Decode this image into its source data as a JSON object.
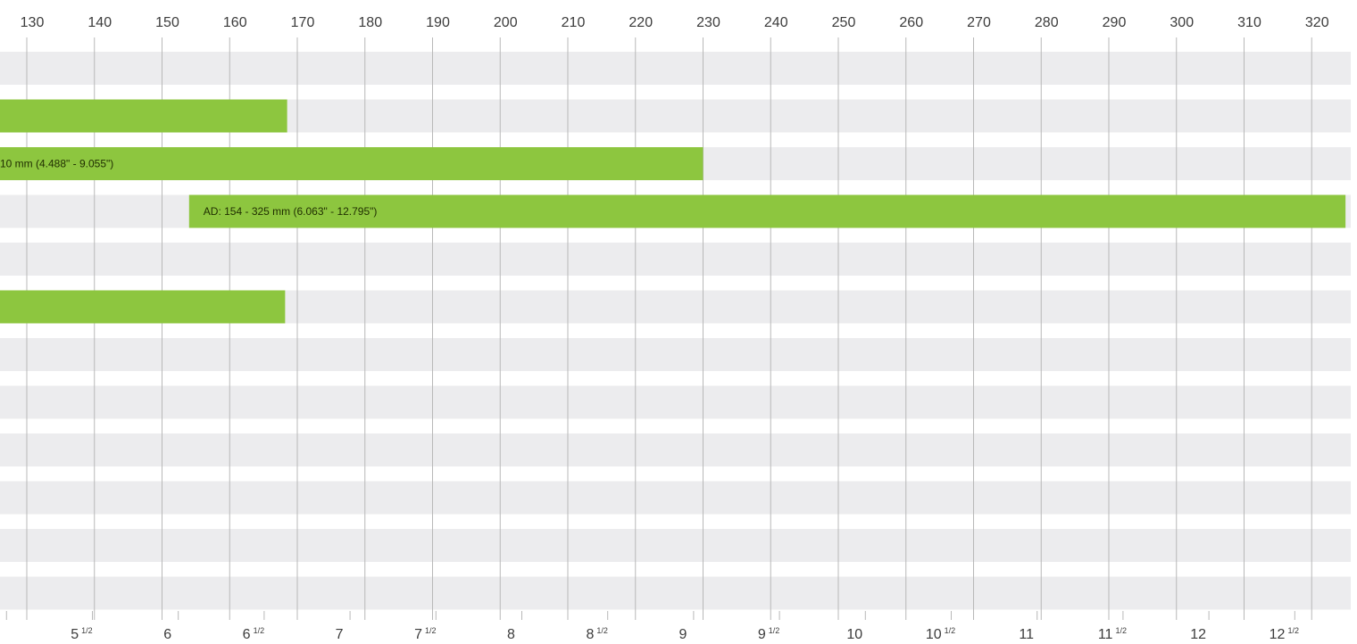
{
  "colors": {
    "bar": "#8dc63f",
    "row_band": "#ececee",
    "grid": "#b8b8b8",
    "background": "#ffffff"
  },
  "chart_data": {
    "type": "bar",
    "orientation": "horizontal",
    "x_axis_top": {
      "unit": "mm",
      "ticks": [
        130,
        140,
        150,
        160,
        170,
        180,
        190,
        200,
        210,
        220,
        230,
        240,
        250,
        260,
        270,
        280,
        290,
        300,
        310,
        320
      ],
      "visible_range": [
        126,
        327
      ]
    },
    "x_axis_bottom": {
      "unit": "inch",
      "ticks": [
        {
          "value": 5,
          "main": "5",
          "frac": ""
        },
        {
          "value": 5.5,
          "main": "5",
          "frac": "1/2"
        },
        {
          "value": 6,
          "main": "6",
          "frac": ""
        },
        {
          "value": 6.5,
          "main": "6",
          "frac": "1/2"
        },
        {
          "value": 7,
          "main": "7",
          "frac": ""
        },
        {
          "value": 7.5,
          "main": "7",
          "frac": "1/2"
        },
        {
          "value": 8,
          "main": "8",
          "frac": ""
        },
        {
          "value": 8.5,
          "main": "8",
          "frac": "1/2"
        },
        {
          "value": 9,
          "main": "9",
          "frac": ""
        },
        {
          "value": 9.5,
          "main": "9",
          "frac": "1/2"
        },
        {
          "value": 10,
          "main": "10",
          "frac": ""
        },
        {
          "value": 10.5,
          "main": "10",
          "frac": "1/2"
        },
        {
          "value": 11,
          "main": "11",
          "frac": ""
        },
        {
          "value": 11.5,
          "main": "11",
          "frac": "1/2"
        },
        {
          "value": 12,
          "main": "12",
          "frac": ""
        },
        {
          "value": 12.5,
          "main": "12",
          "frac": "1/2"
        }
      ]
    },
    "row_count": 12,
    "bars": [
      {
        "row": 1,
        "start": 114,
        "end": 168.5,
        "label": ""
      },
      {
        "row": 2,
        "start": 114,
        "end": 230,
        "label": "10 mm (4.488\" - 9.055\")"
      },
      {
        "row": 3,
        "start": 154,
        "end": 325,
        "label": "AD: 154 - 325 mm (6.063\" - 12.795\")"
      },
      {
        "row": 5,
        "start": 114,
        "end": 168.2,
        "label": ""
      }
    ],
    "grid": true
  }
}
